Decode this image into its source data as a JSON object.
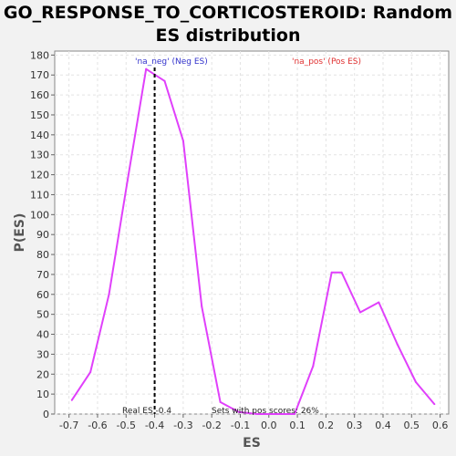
{
  "chart_data": {
    "type": "line",
    "title_line1": "GO_RESPONSE_TO_CORTICOSTEROID: Random",
    "title_line2": "ES distribution",
    "xlabel": "ES",
    "ylabel": "P(ES)",
    "xlim": [
      -0.75,
      0.63
    ],
    "ylim": [
      0,
      182
    ],
    "xticks": [
      -0.7,
      -0.6,
      -0.5,
      -0.4,
      -0.3,
      -0.2,
      -0.1,
      0.0,
      0.1,
      0.2,
      0.3,
      0.4,
      0.5,
      0.6
    ],
    "xtick_labels": [
      "-0.7",
      "-0.6",
      "-0.5",
      "-0.4",
      "-0.3",
      "-0.2",
      "-0.1",
      "0.0",
      "0.1",
      "0.2",
      "0.3",
      "0.4",
      "0.5",
      "0.6"
    ],
    "yticks": [
      0,
      10,
      20,
      30,
      40,
      50,
      60,
      70,
      80,
      90,
      100,
      110,
      120,
      130,
      140,
      150,
      160,
      170,
      180
    ],
    "ytick_labels": [
      "0",
      "10",
      "20",
      "30",
      "40",
      "50",
      "60",
      "70",
      "80",
      "90",
      "100",
      "110",
      "120",
      "130",
      "140",
      "150",
      "160",
      "170",
      "180"
    ],
    "grid": true,
    "series": [
      {
        "color": "#e040fb",
        "x": [
          -0.69,
          -0.625,
          -0.56,
          -0.495,
          -0.43,
          -0.365,
          -0.3,
          -0.235,
          -0.17,
          -0.105,
          -0.04,
          0.025,
          0.09,
          0.155,
          0.22,
          0.255,
          0.32,
          0.385,
          0.45,
          0.515,
          0.58
        ],
        "y": [
          7,
          21,
          60,
          117,
          173,
          167,
          137,
          54,
          6,
          1,
          0,
          0,
          0,
          24,
          71,
          71,
          51,
          56,
          35,
          16,
          5
        ]
      }
    ],
    "real_es": {
      "x": -0.4,
      "label": "Real ES -0.4"
    },
    "annotations": {
      "neg_label": "'na_neg' (Neg ES)",
      "pos_label": "'na_pos' (Pos ES)",
      "pos_scores_label": "Sets with pos scores: 26%"
    },
    "colors": {
      "series": "#e040fb",
      "neg_label": "#3333cc",
      "pos_label": "#e03030",
      "plot_background": "#ffffff",
      "page_background": "#f2f2f2"
    }
  }
}
